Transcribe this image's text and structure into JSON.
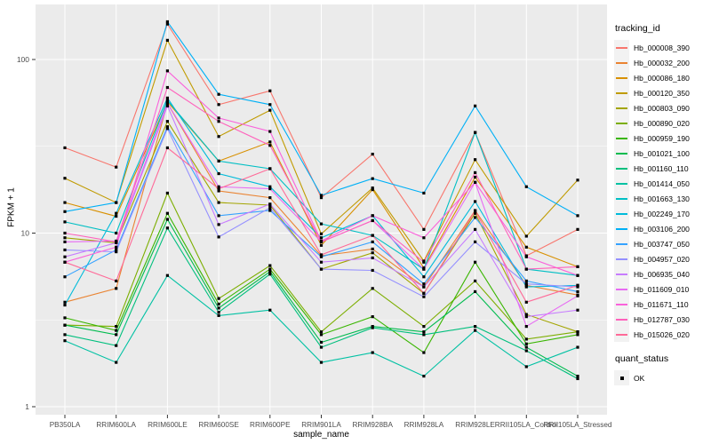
{
  "figure": {
    "bg": "#FFFFFF",
    "panel_bg": "#EBEBEB",
    "grid_color": "#FFFFFF",
    "axis_text_color": "#4D4D4D",
    "tick_color": "#333333",
    "legend_key_bg": "#F2F2F2"
  },
  "chart_data": {
    "type": "line",
    "title": "",
    "xlabel": "sample_name",
    "ylabel": "FPKM + 1",
    "y_scale": "log10",
    "y_ticks": [
      1,
      10,
      100
    ],
    "y_tick_labels": [
      "1",
      "10",
      "100"
    ],
    "y_minor_ticks": [
      3.162,
      31.623
    ],
    "ylim": [
      0.9,
      205
    ],
    "grid": true,
    "point_shape": "filled-square",
    "point_color": "#000000",
    "legend_position": "right",
    "categories": [
      "PB350LA",
      "RRIM600LA",
      "RRIM600LE",
      "RRIM600SE",
      "RRIM600PE",
      "RRIM901LA",
      "RRIM928BA",
      "RRIM928LA",
      "RRIM928LE",
      "RRII105LA_Control",
      "RRII105LA_Stressed"
    ],
    "series": [
      {
        "name": "Hb_000008_390",
        "color": "#F8766D",
        "values": [
          31,
          24,
          160,
          55,
          66,
          16,
          28.5,
          10.5,
          38,
          7.4,
          10.5
        ]
      },
      {
        "name": "Hb_000032_200",
        "color": "#EA8331",
        "values": [
          4.0,
          4.8,
          56,
          17.5,
          16,
          7.4,
          8.1,
          4.9,
          13.5,
          5.0,
          4.4
        ]
      },
      {
        "name": "Hb_000086_180",
        "color": "#D89000",
        "values": [
          15,
          12.5,
          57,
          26,
          33.5,
          8.5,
          17.8,
          6.3,
          21,
          8.3,
          6.4
        ]
      },
      {
        "name": "Hb_000120_350",
        "color": "#C09B00",
        "values": [
          20.7,
          15,
          129,
          36,
          51,
          9.9,
          18.2,
          6.9,
          26.5,
          9.6,
          20.2
        ]
      },
      {
        "name": "Hb_000803_090",
        "color": "#A3A500",
        "values": [
          9.4,
          8.8,
          44,
          15,
          14.5,
          6.2,
          7.7,
          4.5,
          13,
          3.4,
          2.7
        ]
      },
      {
        "name": "Hb_000890_020",
        "color": "#7CAE00",
        "values": [
          2.95,
          2.9,
          17,
          4.2,
          6.5,
          2.7,
          4.8,
          2.9,
          5.3,
          2.45,
          2.7
        ]
      },
      {
        "name": "Hb_000959_190",
        "color": "#39B600",
        "values": [
          3.25,
          2.75,
          13,
          3.9,
          6.2,
          2.6,
          3.3,
          2.05,
          6.8,
          2.3,
          2.6
        ]
      },
      {
        "name": "Hb_001021_100",
        "color": "#00BB4E",
        "values": [
          2.95,
          2.6,
          12,
          3.7,
          6.0,
          2.35,
          2.9,
          2.7,
          4.6,
          2.2,
          1.5
        ]
      },
      {
        "name": "Hb_001160_110",
        "color": "#00BF7D",
        "values": [
          2.6,
          2.25,
          10.7,
          3.5,
          5.8,
          2.2,
          2.85,
          2.6,
          2.9,
          2.1,
          1.45
        ]
      },
      {
        "name": "Hb_001414_050",
        "color": "#00C1A3",
        "values": [
          2.4,
          1.8,
          5.7,
          3.35,
          3.6,
          1.8,
          2.05,
          1.5,
          2.75,
          1.7,
          2.2
        ]
      },
      {
        "name": "Hb_001663_130",
        "color": "#00BFC4",
        "values": [
          11.6,
          10,
          58,
          26,
          23.5,
          11.3,
          9.7,
          6.2,
          38,
          6.2,
          5.7
        ]
      },
      {
        "name": "Hb_002249_170",
        "color": "#00BBDA",
        "values": [
          3.85,
          13,
          60,
          22,
          18.5,
          9.4,
          12.6,
          5.6,
          15.2,
          4.9,
          5.0
        ]
      },
      {
        "name": "Hb_003106_200",
        "color": "#00B0F6",
        "values": [
          13.3,
          15,
          165,
          63,
          55,
          16.5,
          20.6,
          17,
          54,
          18.5,
          12.6
        ]
      },
      {
        "name": "Hb_003747_050",
        "color": "#35A2FF",
        "values": [
          5.6,
          8.0,
          41,
          12.6,
          13.5,
          7.3,
          8.9,
          5.1,
          12.3,
          5.3,
          4.6
        ]
      },
      {
        "name": "Hb_004957_020",
        "color": "#9590FF",
        "values": [
          8.0,
          7.8,
          40,
          9.5,
          14,
          6.2,
          6.1,
          4.3,
          8.9,
          5.1,
          4.9
        ]
      },
      {
        "name": "Hb_006935_040",
        "color": "#C77CFF",
        "values": [
          7.3,
          8.8,
          54,
          11.2,
          14.7,
          6.8,
          7.2,
          4.9,
          10.5,
          3.3,
          3.6
        ]
      },
      {
        "name": "Hb_011609_010",
        "color": "#E76BF3",
        "values": [
          8.9,
          9.0,
          56,
          18.5,
          18,
          8.9,
          11.8,
          6.2,
          19.6,
          2.9,
          4.35
        ]
      },
      {
        "name": "Hb_011671_110",
        "color": "#FA62DB",
        "values": [
          6.8,
          8.3,
          86,
          46,
          38.5,
          9.0,
          12.6,
          9.4,
          19.6,
          7.3,
          5.7
        ]
      },
      {
        "name": "Hb_012787_030",
        "color": "#FF62BC",
        "values": [
          10,
          8.9,
          69,
          44,
          32,
          8.9,
          11.8,
          6.8,
          22.3,
          6.2,
          6.4
        ]
      },
      {
        "name": "Hb_015026_020",
        "color": "#FF6A98",
        "values": [
          6.8,
          5.3,
          31,
          18,
          23.5,
          7.5,
          9.7,
          4.5,
          13.4,
          4.0,
          5.0
        ]
      }
    ]
  },
  "legend": {
    "tracking_title": "tracking_id",
    "quant_title": "quant_status",
    "quant_items": [
      {
        "label": "OK"
      }
    ]
  }
}
